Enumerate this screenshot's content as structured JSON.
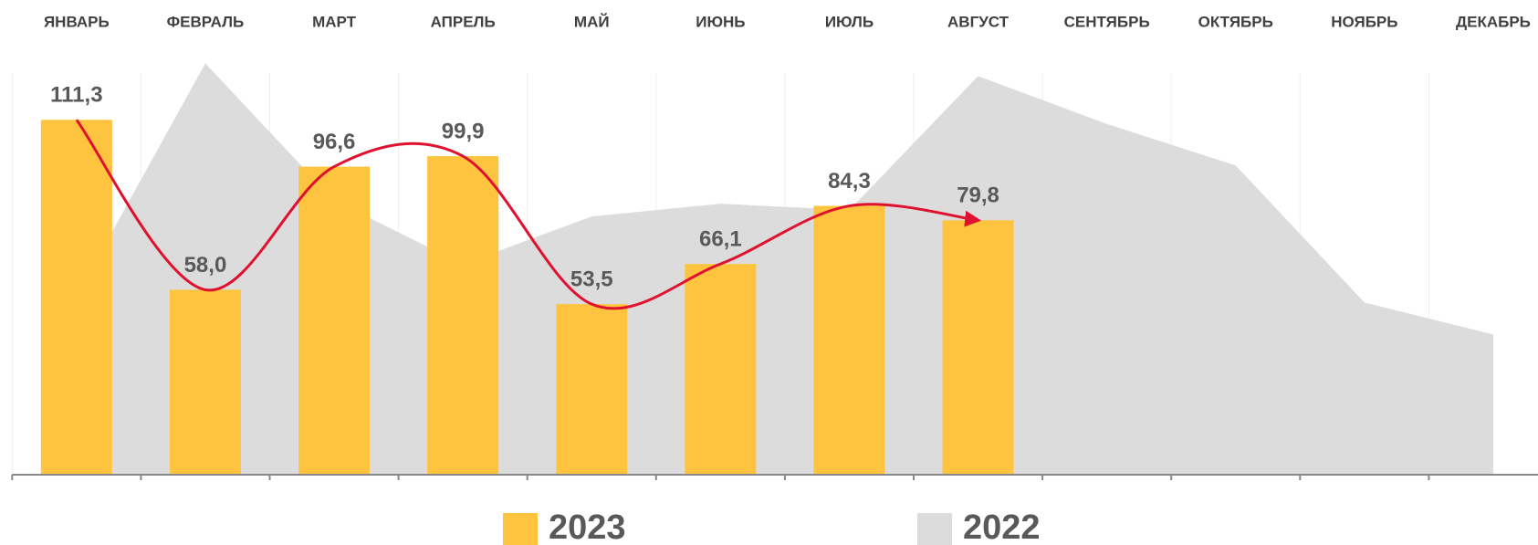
{
  "chart_data": {
    "type": "bar-area",
    "categories": [
      "ЯНВАРЬ",
      "ФЕВРАЛЬ",
      "МАРТ",
      "АПРЕЛЬ",
      "МАЙ",
      "ИЮНЬ",
      "ИЮЛЬ",
      "АВГУСТ",
      "СЕНТЯБРЬ",
      "ОКТЯБРЬ",
      "НОЯБРЬ",
      "ДЕКАБРЬ"
    ],
    "series": [
      {
        "name": "2023",
        "color": "#FFC43F",
        "type": "bar",
        "values": [
          111.3,
          58.0,
          96.6,
          99.9,
          53.5,
          66.1,
          84.3,
          79.8,
          null,
          null,
          null,
          null
        ],
        "value_labels": [
          "111,3",
          "58,0",
          "96,6",
          "99,9",
          "53,5",
          "66,1",
          "84,3",
          "79,8",
          null,
          null,
          null,
          null
        ]
      },
      {
        "name": "2022",
        "color": "#DCDCDC",
        "type": "area",
        "values": [
          56,
          129,
          86,
          66,
          81,
          85,
          83,
          125,
          110,
          97,
          54,
          44
        ]
      }
    ],
    "trend_color": "#E0102F",
    "ylim": [
      0,
      140
    ]
  }
}
